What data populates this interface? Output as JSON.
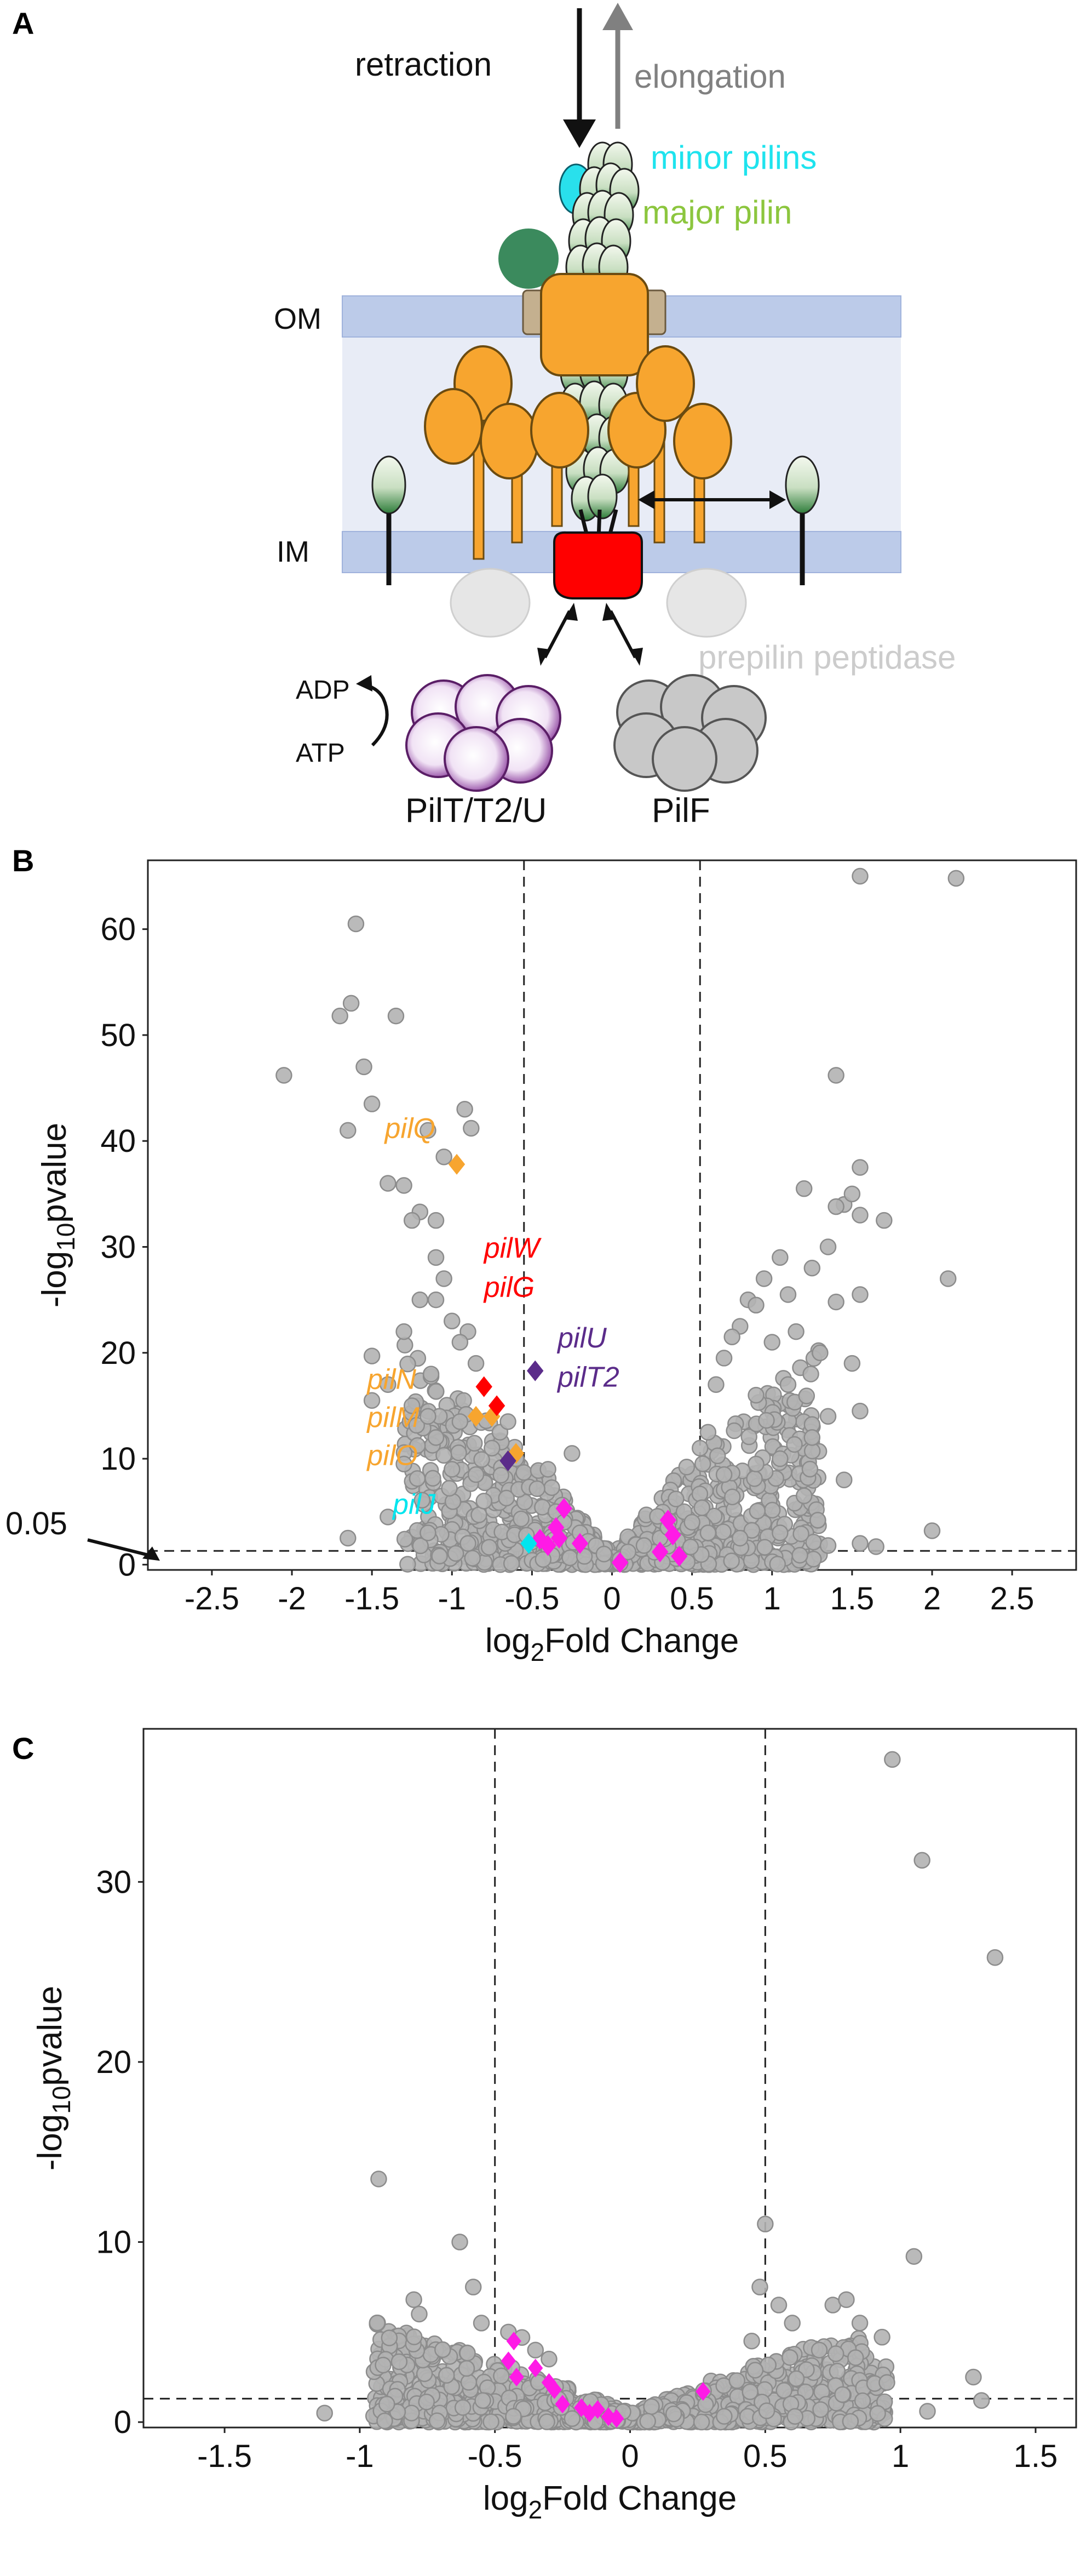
{
  "colors": {
    "grey_point": "#b3b3b3",
    "grey_edge": "#8c8c8c",
    "magenta": "#ff1ae6",
    "orange": "#f7a52f",
    "red": "#ff0000",
    "purple": "#5b2c8a",
    "cyan": "#00e5ee",
    "green_label": "#8cc63e",
    "membrane": "#bccbe9",
    "periplasm": "#e8ecf6"
  },
  "panelA": {
    "letter": "A",
    "retraction": "retraction",
    "elongation": "elongation",
    "minor_pilins": "minor pilins",
    "major_pilin": "major pilin",
    "om": "OM",
    "im": "IM",
    "prepilin_peptidase": "prepilin peptidase",
    "adp": "ADP",
    "atp": "ATP",
    "pilT_label": "PilT/T2/U",
    "pilF_label": "PilF"
  },
  "chart_data": [
    {
      "panel": "B",
      "type": "scatter",
      "title": "",
      "xlabel_main": "log",
      "xlabel_sub": "2",
      "xlabel_rest": "Fold Change",
      "ylabel_pre": "-log",
      "ylabel_sub": "10",
      "ylabel_rest": "pvalue",
      "xlim": [
        -2.9,
        2.9
      ],
      "ylim": [
        -0.5,
        66.5
      ],
      "xticks": [
        -2.5,
        -2,
        -1.5,
        -1,
        -0.5,
        0,
        0.5,
        1,
        1.5,
        2,
        2.5
      ],
      "xtick_labels": [
        "-2.5",
        "-2",
        "-1.5",
        "-1",
        "-0.5",
        "0",
        "0.5",
        "1",
        "1.5",
        "2",
        "2.5"
      ],
      "yticks": [
        0,
        10,
        20,
        30,
        40,
        50,
        60
      ],
      "ytick_labels": [
        "0",
        "10",
        "20",
        "30",
        "40",
        "50",
        "60"
      ],
      "threshold_label": "0.05",
      "threshold_y": 1.3,
      "vlines": [
        -0.55,
        0.55
      ],
      "gray_points": [
        [
          -2.05,
          46.2
        ],
        [
          -1.6,
          60.5
        ],
        [
          -1.63,
          53
        ],
        [
          -1.7,
          51.8
        ],
        [
          -1.55,
          47
        ],
        [
          -1.5,
          43.5
        ],
        [
          -1.65,
          41
        ],
        [
          -1.35,
          51.8
        ],
        [
          -1.4,
          36
        ],
        [
          -1.3,
          35.8
        ],
        [
          -1.15,
          41
        ],
        [
          -1.05,
          38.5
        ],
        [
          -0.92,
          43
        ],
        [
          -0.88,
          41.2
        ],
        [
          -1.2,
          33.3
        ],
        [
          -1.25,
          32.5
        ],
        [
          -1.1,
          32.5
        ],
        [
          -1.1,
          29
        ],
        [
          -1.05,
          27
        ],
        [
          -1.2,
          25
        ],
        [
          -1.1,
          25
        ],
        [
          -1.0,
          23
        ],
        [
          -1.3,
          22
        ],
        [
          -0.9,
          22
        ],
        [
          -0.95,
          21
        ],
        [
          -0.85,
          19
        ],
        [
          -1.5,
          19.7
        ],
        [
          -1.4,
          17
        ],
        [
          -1.5,
          15.5
        ],
        [
          -1.25,
          15
        ],
        [
          -1.15,
          14
        ],
        [
          -0.95,
          13.5
        ],
        [
          -1.1,
          12
        ],
        [
          -1.3,
          9.5
        ],
        [
          -1.0,
          9
        ],
        [
          -0.85,
          8.5
        ],
        [
          -0.75,
          11
        ],
        [
          -0.7,
          12.5
        ],
        [
          -0.65,
          13.5
        ],
        [
          -0.6,
          10
        ],
        [
          -0.8,
          6
        ],
        [
          -1.4,
          4.5
        ],
        [
          -1.65,
          2.5
        ],
        [
          -1.15,
          3
        ],
        [
          -0.9,
          2
        ],
        [
          1.55,
          65
        ],
        [
          2.15,
          64.8
        ],
        [
          1.4,
          46.2
        ],
        [
          1.45,
          34
        ],
        [
          1.55,
          37.5
        ],
        [
          1.2,
          35.5
        ],
        [
          1.5,
          35
        ],
        [
          1.4,
          33.8
        ],
        [
          1.55,
          33
        ],
        [
          1.7,
          32.5
        ],
        [
          1.35,
          30
        ],
        [
          1.25,
          28
        ],
        [
          1.05,
          29
        ],
        [
          0.95,
          27
        ],
        [
          0.85,
          25
        ],
        [
          0.9,
          24.5
        ],
        [
          1.1,
          25.5
        ],
        [
          1.4,
          24.8
        ],
        [
          1.55,
          25.5
        ],
        [
          2.1,
          27
        ],
        [
          0.8,
          22.5
        ],
        [
          0.75,
          21.5
        ],
        [
          1.0,
          21
        ],
        [
          1.15,
          22
        ],
        [
          1.3,
          20
        ],
        [
          1.5,
          19
        ],
        [
          0.7,
          19.5
        ],
        [
          0.65,
          17
        ],
        [
          0.9,
          16
        ],
        [
          1.1,
          17
        ],
        [
          1.35,
          14
        ],
        [
          1.55,
          14.5
        ],
        [
          1.25,
          12
        ],
        [
          1.05,
          10
        ],
        [
          0.6,
          12.5
        ],
        [
          0.55,
          11
        ],
        [
          0.7,
          8.5
        ],
        [
          0.9,
          9.5
        ],
        [
          1.45,
          8
        ],
        [
          1.2,
          6.5
        ],
        [
          2.0,
          3.2
        ],
        [
          1.55,
          2
        ],
        [
          1.35,
          1.8
        ],
        [
          1.65,
          1.7
        ],
        [
          0.8,
          2.5
        ],
        [
          1.05,
          3
        ],
        [
          0.6,
          3
        ],
        [
          -0.25,
          10.5
        ],
        [
          -0.4,
          9
        ],
        [
          -0.35,
          5
        ],
        [
          -0.3,
          4
        ],
        [
          -0.2,
          3
        ],
        [
          -0.15,
          2.2
        ],
        [
          -0.1,
          1.8
        ],
        [
          -0.05,
          1
        ],
        [
          0.05,
          0.5
        ],
        [
          0.1,
          1.2
        ],
        [
          0.2,
          1.8
        ],
        [
          0.3,
          2.5
        ],
        [
          0.35,
          3.5
        ],
        [
          0.45,
          5
        ],
        [
          0.5,
          4
        ],
        [
          0.4,
          6.2
        ]
      ],
      "gray_cloud": true,
      "magenta_points": [
        [
          -0.3,
          5.3
        ],
        [
          -0.35,
          3.5
        ],
        [
          -0.33,
          2.5
        ],
        [
          -0.2,
          2
        ],
        [
          -0.4,
          1.8
        ],
        [
          0.05,
          0.2
        ],
        [
          0.35,
          4.2
        ],
        [
          0.38,
          2.8
        ],
        [
          0.3,
          1.2
        ],
        [
          0.42,
          0.8
        ],
        [
          -0.45,
          2.4
        ]
      ],
      "orange_points": [
        [
          -0.97,
          37.8
        ],
        [
          -0.85,
          14
        ],
        [
          -0.75,
          14
        ],
        [
          -0.6,
          10.5
        ]
      ],
      "red_points": [
        [
          -0.8,
          16.8
        ],
        [
          -0.72,
          15
        ]
      ],
      "purple_points": [
        [
          -0.48,
          18.3
        ],
        [
          -0.65,
          9.8
        ]
      ],
      "cyan_points": [
        [
          -0.52,
          2
        ]
      ],
      "gene_labels": [
        {
          "text": "pilQ",
          "color": "orange",
          "x": -1.42,
          "y": 40.3
        },
        {
          "text": "pilW",
          "color": "red",
          "x": -0.8,
          "y": 29
        },
        {
          "text": "pilG",
          "color": "red",
          "x": -0.8,
          "y": 25.3
        },
        {
          "text": "pilU",
          "color": "purple",
          "x": -0.34,
          "y": 20.5
        },
        {
          "text": "pilT2",
          "color": "purple",
          "x": -0.34,
          "y": 16.8
        },
        {
          "text": "pilN",
          "color": "orange",
          "x": -1.53,
          "y": 16.6
        },
        {
          "text": "pilM",
          "color": "orange",
          "x": -1.53,
          "y": 13
        },
        {
          "text": "pilO",
          "color": "orange",
          "x": -1.53,
          "y": 9.4
        },
        {
          "text": "pilJ",
          "color": "cyan",
          "x": -1.37,
          "y": 4.8
        }
      ]
    },
    {
      "panel": "C",
      "type": "scatter",
      "title": "",
      "xlabel_main": "log",
      "xlabel_sub": "2",
      "xlabel_rest": "Fold Change",
      "ylabel_pre": "-log",
      "ylabel_sub": "10",
      "ylabel_rest": "pvalue",
      "xlim": [
        -1.8,
        1.65
      ],
      "ylim": [
        -0.3,
        38.5
      ],
      "xticks": [
        -1.5,
        -1,
        -0.5,
        0,
        0.5,
        1,
        1.5
      ],
      "xtick_labels": [
        "-1.5",
        "-1",
        "-0.5",
        "0",
        "0.5",
        "1",
        "1.5"
      ],
      "yticks": [
        0,
        10,
        20,
        30
      ],
      "ytick_labels": [
        "0",
        "10",
        "20",
        "30"
      ],
      "threshold_y": 1.3,
      "vlines": [
        -0.5,
        0.5
      ],
      "gray_points": [
        [
          0.97,
          36.8
        ],
        [
          1.08,
          31.2
        ],
        [
          1.35,
          25.8
        ],
        [
          -0.93,
          13.5
        ],
        [
          -0.63,
          10
        ],
        [
          0.5,
          11
        ],
        [
          1.05,
          9.2
        ],
        [
          -0.58,
          7.5
        ],
        [
          -0.8,
          6.8
        ],
        [
          -0.78,
          6
        ],
        [
          -0.55,
          5.5
        ],
        [
          -0.45,
          5
        ],
        [
          -0.4,
          4.7
        ],
        [
          0.48,
          7.5
        ],
        [
          0.55,
          6.5
        ],
        [
          0.6,
          5.5
        ],
        [
          0.75,
          6.5
        ],
        [
          0.8,
          6.8
        ],
        [
          0.85,
          5.5
        ],
        [
          0.7,
          4
        ],
        [
          1.27,
          2.5
        ],
        [
          1.3,
          1.2
        ],
        [
          0.95,
          2.2
        ],
        [
          -1.13,
          0.5
        ],
        [
          -0.9,
          1
        ],
        [
          1.1,
          0.6
        ],
        [
          -0.35,
          4
        ],
        [
          -0.3,
          3.5
        ],
        [
          0.45,
          4.5
        ]
      ],
      "gray_cloud": true,
      "magenta_points": [
        [
          -0.43,
          4.5
        ],
        [
          -0.45,
          3.4
        ],
        [
          -0.42,
          2.5
        ],
        [
          -0.35,
          3
        ],
        [
          -0.3,
          2.2
        ],
        [
          -0.28,
          1.8
        ],
        [
          -0.25,
          1
        ],
        [
          -0.18,
          0.8
        ],
        [
          -0.15,
          0.5
        ],
        [
          -0.12,
          0.7
        ],
        [
          -0.08,
          0.3
        ],
        [
          -0.05,
          0.2
        ],
        [
          0.27,
          1.7
        ]
      ],
      "orange_points": [],
      "red_points": [],
      "purple_points": [],
      "cyan_points": [],
      "gene_labels": []
    }
  ],
  "panelB_letter": "B",
  "panelC_letter": "C"
}
